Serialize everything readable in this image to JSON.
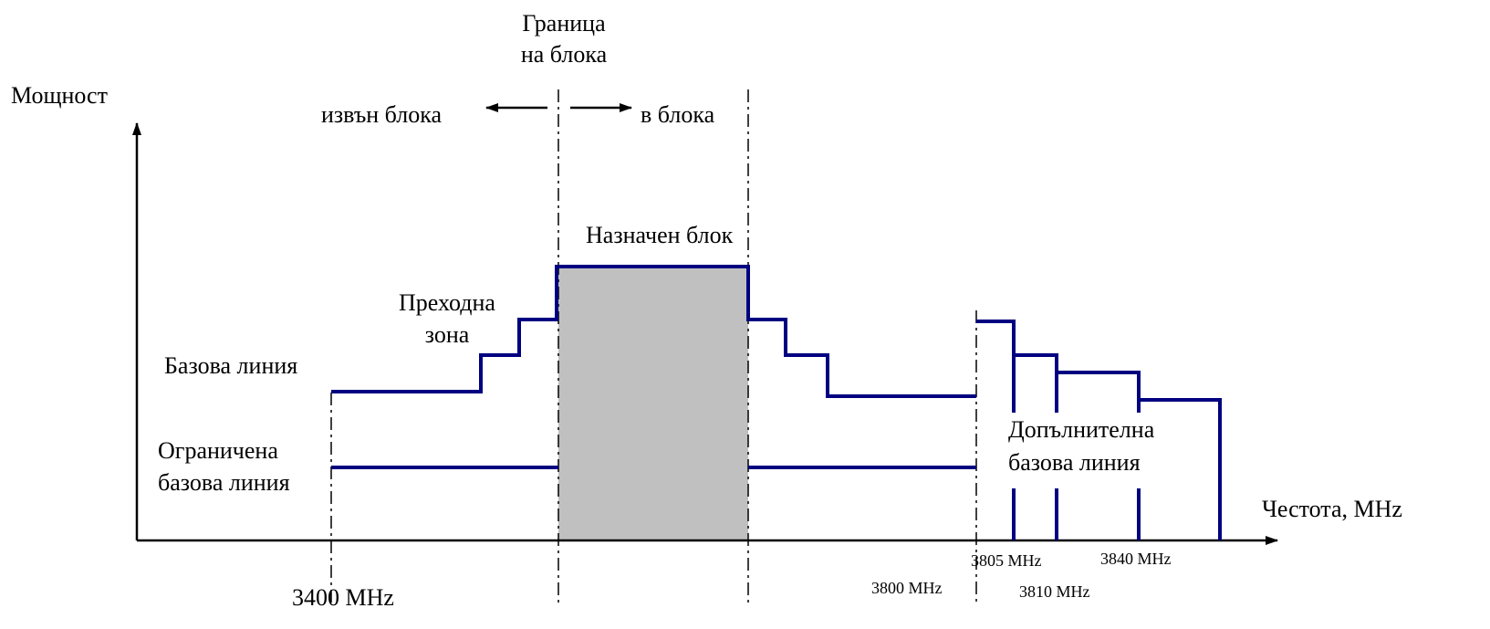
{
  "labels": {
    "block_edge": [
      "Граница",
      "на блока"
    ],
    "power_axis": "Мощност",
    "out_of_block": "извън блока",
    "in_block": "в блока",
    "assigned_block": "Назначен блок",
    "transition_zone": [
      "Преходна",
      "зона"
    ],
    "baseline": "Базова линия",
    "restricted_baseline": [
      "Ограничена",
      "базова линия"
    ],
    "additional_baseline": [
      "Допълнителна",
      "базова линия"
    ],
    "frequency_axis": "Честота, MHz",
    "frequencies": [
      "3400 MHz",
      "3800 MHz",
      "3805 MHz",
      "3810 MHz",
      "3840 MHz"
    ]
  }
}
